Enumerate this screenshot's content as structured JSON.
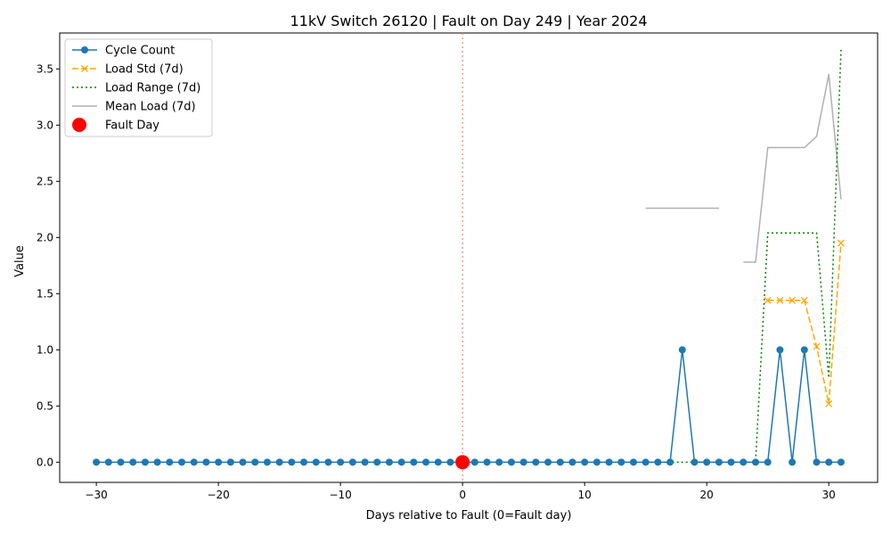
{
  "chart_data": {
    "type": "line",
    "title": "11kV Switch 26120 | Fault on Day 249 | Year 2024",
    "xlabel": "Days relative to Fault (0=Fault day)",
    "ylabel": "Value",
    "xlim": [
      -33,
      34
    ],
    "ylim": [
      -0.18,
      3.82
    ],
    "xticks": [
      -30,
      -20,
      -10,
      0,
      10,
      20,
      30
    ],
    "xtick_labels": [
      "−30",
      "−20",
      "−10",
      "0",
      "10",
      "20",
      "30"
    ],
    "yticks": [
      0.0,
      0.5,
      1.0,
      1.5,
      2.0,
      2.5,
      3.0,
      3.5
    ],
    "ytick_labels": [
      "0.0",
      "0.5",
      "1.0",
      "1.5",
      "2.0",
      "2.5",
      "3.0",
      "3.5"
    ],
    "grid": false,
    "legend_position": "top-left",
    "fault_line_x": 0,
    "series": [
      {
        "name": "Cycle Count",
        "color": "#1f77b4",
        "style": "solid",
        "marker": "circle",
        "x": [
          -30,
          -29,
          -28,
          -27,
          -26,
          -25,
          -24,
          -23,
          -22,
          -21,
          -20,
          -19,
          -18,
          -17,
          -16,
          -15,
          -14,
          -13,
          -12,
          -11,
          -10,
          -9,
          -8,
          -7,
          -6,
          -5,
          -4,
          -3,
          -2,
          -1,
          0,
          1,
          2,
          3,
          4,
          5,
          6,
          7,
          8,
          9,
          10,
          11,
          12,
          13,
          14,
          15,
          16,
          17,
          18,
          19,
          20,
          21,
          22,
          23,
          24,
          25,
          26,
          27,
          28,
          29,
          30,
          31
        ],
        "y": [
          0,
          0,
          0,
          0,
          0,
          0,
          0,
          0,
          0,
          0,
          0,
          0,
          0,
          0,
          0,
          0,
          0,
          0,
          0,
          0,
          0,
          0,
          0,
          0,
          0,
          0,
          0,
          0,
          0,
          0,
          0,
          0,
          0,
          0,
          0,
          0,
          0,
          0,
          0,
          0,
          0,
          0,
          0,
          0,
          0,
          0,
          0,
          0,
          1,
          0,
          0,
          0,
          0,
          0,
          0,
          0,
          1,
          0,
          1,
          0,
          0,
          0
        ]
      },
      {
        "name": "Load Std (7d)",
        "color": "#ffa500",
        "style": "dashed",
        "marker": "x",
        "x": [
          25,
          26,
          27,
          28,
          29,
          30,
          31
        ],
        "y": [
          1.44,
          1.44,
          1.44,
          1.44,
          1.03,
          0.52,
          1.95
        ]
      },
      {
        "name": "Load Range (7d)",
        "color": "#008000",
        "style": "dotted",
        "marker": "none",
        "segments": [
          {
            "x": [
              15,
              16,
              17,
              18,
              19,
              20,
              21,
              22,
              23,
              24,
              25,
              26,
              27,
              28,
              29,
              30,
              31
            ],
            "y": [
              0,
              0,
              0,
              0,
              0,
              0,
              0,
              0,
              0,
              0,
              2.04,
              2.04,
              2.04,
              2.04,
              2.04,
              0.75,
              3.67
            ]
          }
        ]
      },
      {
        "name": "Mean Load (7d)",
        "color": "#b0b0b0",
        "style": "solid",
        "marker": "none",
        "segments": [
          {
            "x": [
              15,
              16,
              17,
              18,
              19,
              20,
              21
            ],
            "y": [
              2.26,
              2.26,
              2.26,
              2.26,
              2.26,
              2.26,
              2.26
            ]
          },
          {
            "x": [
              23,
              24,
              25,
              26,
              27,
              28,
              29,
              30,
              31
            ],
            "y": [
              1.78,
              1.78,
              2.8,
              2.8,
              2.8,
              2.8,
              2.9,
              3.45,
              2.34
            ]
          }
        ]
      },
      {
        "name": "Fault Day",
        "color": "#ff0000",
        "style": "none",
        "marker": "big-circle",
        "x": [
          0
        ],
        "y": [
          0
        ]
      }
    ]
  }
}
